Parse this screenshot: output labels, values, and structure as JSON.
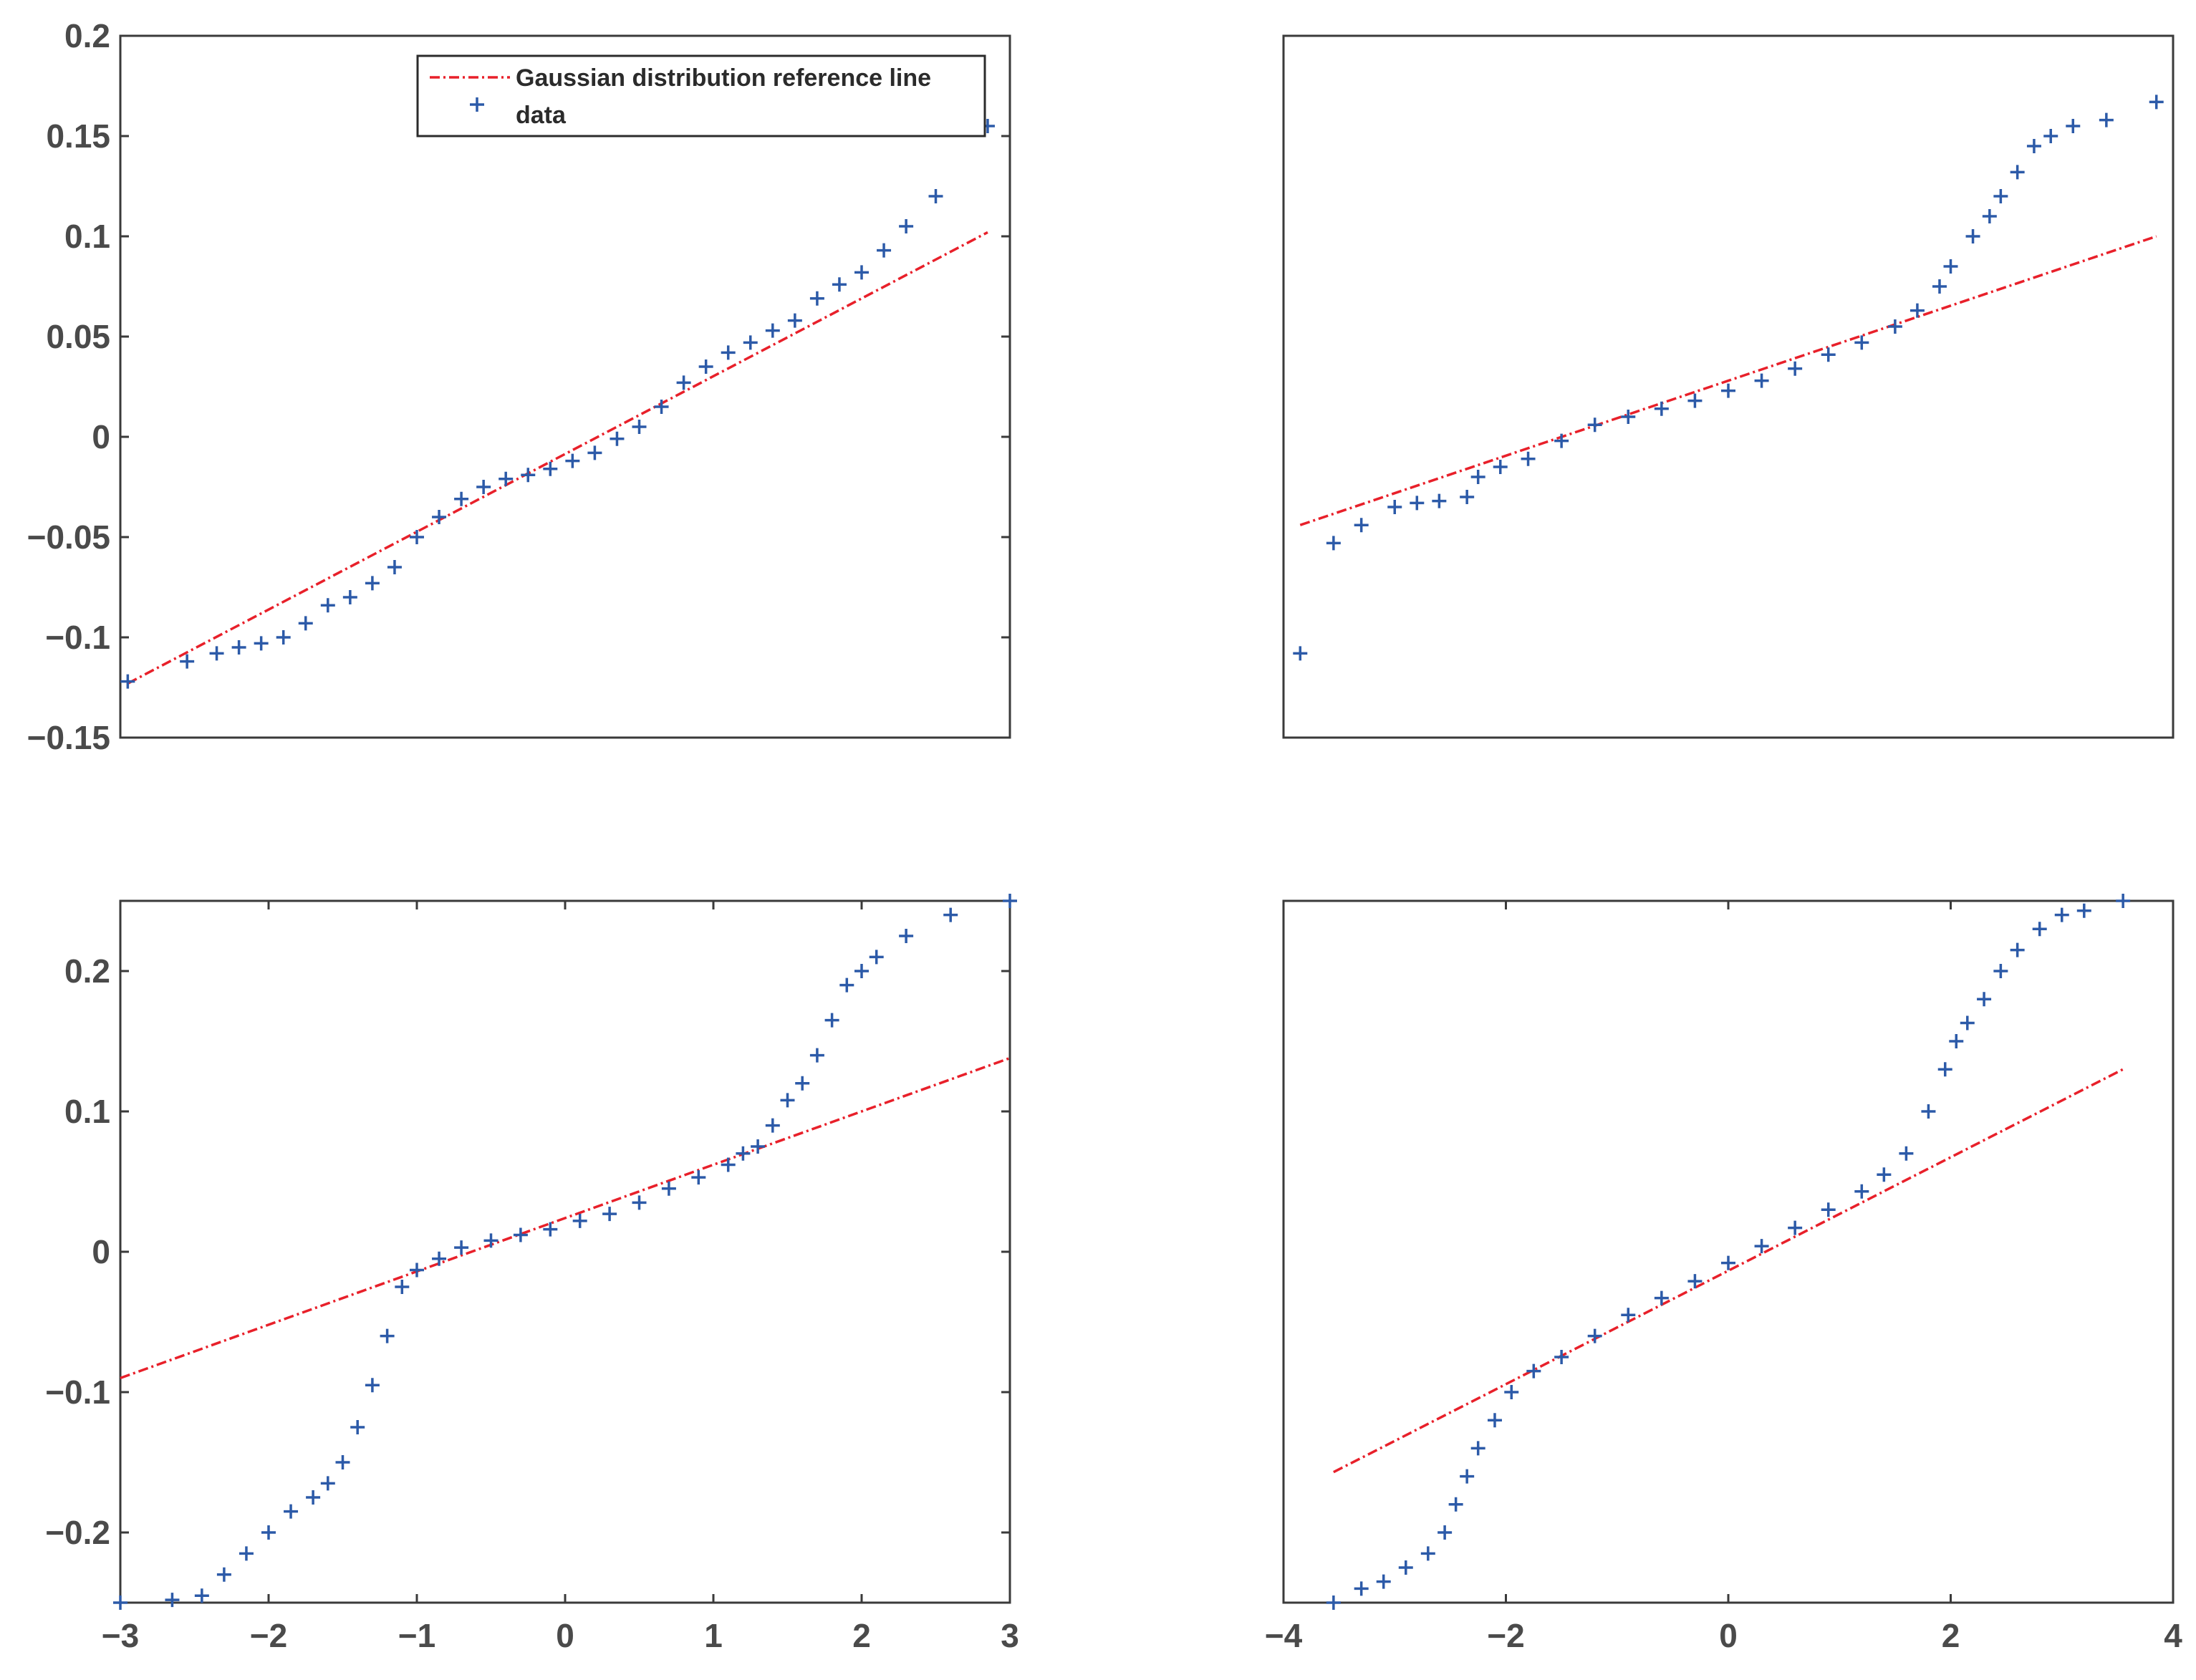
{
  "colors": {
    "reference": "#e8202a",
    "data": "#2c5aa8",
    "axes": "#3a3a3a",
    "text": "#4a4a4a"
  },
  "legend": {
    "reference_label": "Gaussian distribution reference line",
    "data_label": "data"
  },
  "chart_data": [
    {
      "id": "top-left",
      "type": "scatter",
      "title": "",
      "xlabel": "",
      "ylabel": "",
      "xlim": [
        -3,
        3
      ],
      "ylim": [
        -0.15,
        0.2
      ],
      "xticks": [],
      "xtick_labels": [],
      "yticks": [
        -0.15,
        -0.1,
        -0.05,
        0,
        0.05,
        0.1,
        0.15,
        0.2
      ],
      "ytick_labels": [
        "−0.15",
        "−0.1",
        "−0.05",
        "0",
        "0.05",
        "0.1",
        "0.15",
        "0.2"
      ],
      "legend": "top-right",
      "reference_line": {
        "name": "Gaussian distribution reference line",
        "x": [
          -2.95,
          2.85
        ],
        "y": [
          -0.123,
          0.102
        ]
      },
      "series": [
        {
          "name": "data",
          "x": [
            -2.95,
            -2.55,
            -2.35,
            -2.2,
            -2.05,
            -1.9,
            -1.75,
            -1.6,
            -1.45,
            -1.3,
            -1.15,
            -1.0,
            -0.85,
            -0.7,
            -0.55,
            -0.4,
            -0.25,
            -0.1,
            0.05,
            0.2,
            0.35,
            0.5,
            0.65,
            0.8,
            0.95,
            1.1,
            1.25,
            1.4,
            1.55,
            1.7,
            1.85,
            2.0,
            2.15,
            2.3,
            2.5,
            2.85
          ],
          "y": [
            -0.122,
            -0.112,
            -0.108,
            -0.105,
            -0.103,
            -0.1,
            -0.093,
            -0.084,
            -0.08,
            -0.073,
            -0.065,
            -0.05,
            -0.04,
            -0.031,
            -0.025,
            -0.021,
            -0.019,
            -0.016,
            -0.012,
            -0.008,
            -0.001,
            0.005,
            0.015,
            0.027,
            0.035,
            0.042,
            0.047,
            0.053,
            0.058,
            0.069,
            0.076,
            0.082,
            0.093,
            0.105,
            0.12,
            0.155
          ]
        }
      ]
    },
    {
      "id": "top-right",
      "type": "scatter",
      "title": "",
      "xlabel": "",
      "ylabel": "",
      "xlim": [
        -4,
        4
      ],
      "ylim": [
        -0.15,
        0.2
      ],
      "xticks": [],
      "xtick_labels": [],
      "yticks": [],
      "ytick_labels": [],
      "legend": "",
      "reference_line": {
        "name": "Gaussian distribution reference line",
        "x": [
          -3.85,
          3.85
        ],
        "y": [
          -0.044,
          0.1
        ]
      },
      "series": [
        {
          "name": "data",
          "x": [
            -3.85,
            -3.55,
            -3.3,
            -3.0,
            -2.8,
            -2.6,
            -2.35,
            -2.25,
            -2.05,
            -1.8,
            -1.5,
            -1.2,
            -0.9,
            -0.6,
            -0.3,
            0.0,
            0.3,
            0.6,
            0.9,
            1.2,
            1.5,
            1.7,
            1.9,
            2.0,
            2.2,
            2.35,
            2.45,
            2.6,
            2.75,
            2.9,
            3.1,
            3.4,
            3.85
          ],
          "y": [
            -0.108,
            -0.053,
            -0.044,
            -0.035,
            -0.033,
            -0.032,
            -0.03,
            -0.02,
            -0.015,
            -0.011,
            -0.002,
            0.006,
            0.01,
            0.014,
            0.018,
            0.023,
            0.028,
            0.034,
            0.041,
            0.047,
            0.055,
            0.063,
            0.075,
            0.085,
            0.1,
            0.11,
            0.12,
            0.132,
            0.145,
            0.15,
            0.155,
            0.158,
            0.167
          ]
        }
      ]
    },
    {
      "id": "bottom-left",
      "type": "scatter",
      "title": "",
      "xlabel": "",
      "ylabel": "",
      "xlim": [
        -3,
        3
      ],
      "ylim": [
        -0.25,
        0.25
      ],
      "xticks": [
        -3,
        -2,
        -1,
        0,
        1,
        2,
        3
      ],
      "xtick_labels": [
        "−3",
        "−2",
        "−1",
        "0",
        "1",
        "2",
        "3"
      ],
      "yticks": [
        -0.2,
        -0.1,
        0,
        0.1,
        0.2
      ],
      "ytick_labels": [
        "−0.2",
        "−0.1",
        "0",
        "0.1",
        "0.2"
      ],
      "legend": "",
      "reference_line": {
        "name": "Gaussian distribution reference line",
        "x": [
          -3,
          3
        ],
        "y": [
          -0.09,
          0.138
        ]
      },
      "series": [
        {
          "name": "data",
          "x": [
            -3.0,
            -2.65,
            -2.45,
            -2.3,
            -2.15,
            -2.0,
            -1.85,
            -1.7,
            -1.6,
            -1.5,
            -1.4,
            -1.3,
            -1.2,
            -1.1,
            -1.0,
            -0.85,
            -0.7,
            -0.5,
            -0.3,
            -0.1,
            0.1,
            0.3,
            0.5,
            0.7,
            0.9,
            1.1,
            1.2,
            1.3,
            1.4,
            1.5,
            1.6,
            1.7,
            1.8,
            1.9,
            2.0,
            2.1,
            2.3,
            2.6,
            3.0
          ],
          "y": [
            -0.25,
            -0.248,
            -0.245,
            -0.23,
            -0.215,
            -0.2,
            -0.185,
            -0.175,
            -0.165,
            -0.15,
            -0.125,
            -0.095,
            -0.06,
            -0.025,
            -0.013,
            -0.005,
            0.003,
            0.008,
            0.012,
            0.016,
            0.022,
            0.027,
            0.035,
            0.045,
            0.053,
            0.062,
            0.07,
            0.075,
            0.09,
            0.108,
            0.12,
            0.14,
            0.165,
            0.19,
            0.2,
            0.21,
            0.225,
            0.24,
            0.25
          ]
        }
      ]
    },
    {
      "id": "bottom-right",
      "type": "scatter",
      "title": "",
      "xlabel": "",
      "ylabel": "",
      "xlim": [
        -4,
        4
      ],
      "ylim": [
        -0.25,
        0.25
      ],
      "xticks": [
        -4,
        -2,
        0,
        2,
        4
      ],
      "xtick_labels": [
        "−4",
        "−2",
        "0",
        "2",
        "4"
      ],
      "yticks": [],
      "ytick_labels": [],
      "legend": "",
      "reference_line": {
        "name": "Gaussian distribution reference line",
        "x": [
          -3.55,
          3.55
        ],
        "y": [
          -0.157,
          0.13
        ]
      },
      "series": [
        {
          "name": "data",
          "x": [
            -3.55,
            -3.3,
            -3.1,
            -2.9,
            -2.7,
            -2.55,
            -2.45,
            -2.35,
            -2.25,
            -2.1,
            -1.95,
            -1.75,
            -1.5,
            -1.2,
            -0.9,
            -0.6,
            -0.3,
            0.0,
            0.3,
            0.6,
            0.9,
            1.2,
            1.4,
            1.6,
            1.8,
            1.95,
            2.05,
            2.15,
            2.3,
            2.45,
            2.6,
            2.8,
            3.0,
            3.2,
            3.55
          ],
          "y": [
            -0.25,
            -0.24,
            -0.235,
            -0.225,
            -0.215,
            -0.2,
            -0.18,
            -0.16,
            -0.14,
            -0.12,
            -0.1,
            -0.085,
            -0.075,
            -0.06,
            -0.045,
            -0.033,
            -0.021,
            -0.008,
            0.004,
            0.017,
            0.03,
            0.043,
            0.055,
            0.07,
            0.1,
            0.13,
            0.15,
            0.163,
            0.18,
            0.2,
            0.215,
            0.23,
            0.24,
            0.243,
            0.25
          ]
        }
      ]
    }
  ]
}
